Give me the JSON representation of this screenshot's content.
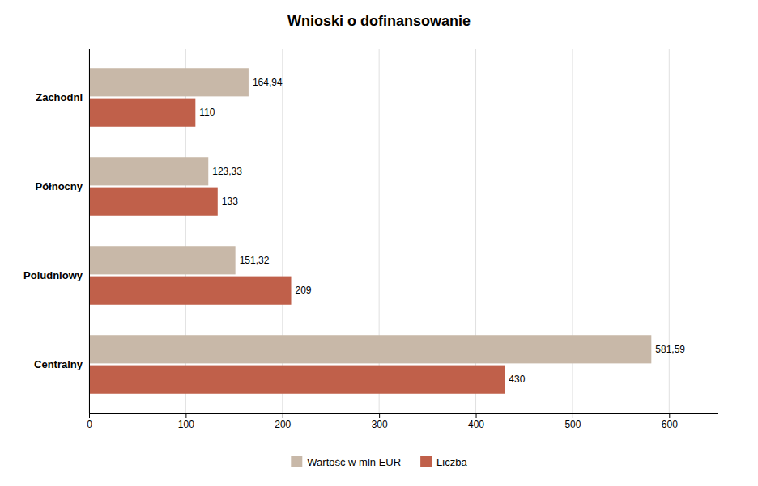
{
  "chart_data": {
    "type": "bar",
    "orientation": "horizontal",
    "title": "Wnioski o dofinansowanie",
    "categories": [
      "Centralny",
      "Poludniowy",
      "Północny",
      "Zachodni"
    ],
    "series": [
      {
        "name": "Wartość w mln EUR",
        "color": "#c8b8a8",
        "values": [
          581.59,
          151.32,
          123.33,
          164.94
        ],
        "value_labels": [
          "581,59",
          "151,32",
          "123,33",
          "164,94"
        ]
      },
      {
        "name": "Liczba",
        "color": "#c0604a",
        "values": [
          430,
          209,
          133,
          110
        ]
      }
    ],
    "xlim": [
      0,
      650
    ],
    "xticks": [
      0,
      100,
      200,
      300,
      400,
      500,
      600
    ],
    "grid": true,
    "data_labels": true,
    "legend": "bottom"
  }
}
